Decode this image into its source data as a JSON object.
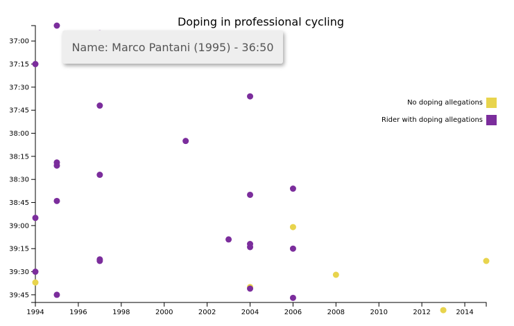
{
  "chart_data": {
    "type": "scatter",
    "title": "Doping in professional cycling",
    "xlabel": "",
    "ylabel": "",
    "xlim": [
      1994,
      2015
    ],
    "ylim": [
      "36:50",
      "39:50"
    ],
    "x_ticks": [
      "1994",
      "1996",
      "1998",
      "2000",
      "2002",
      "2004",
      "2006",
      "2008",
      "2010",
      "2012",
      "2014"
    ],
    "y_ticks": [
      "37:00",
      "37:15",
      "37:30",
      "37:45",
      "38:00",
      "38:15",
      "38:30",
      "38:45",
      "39:00",
      "39:15",
      "39:30",
      "39:45"
    ],
    "y_reversed": true,
    "grid": false,
    "legend_position": "right",
    "series": [
      {
        "name": "No doping allegations",
        "color": "#e8d44d",
        "points": [
          {
            "x": 2006,
            "y": "39:01"
          },
          {
            "x": 2015,
            "y": "39:23"
          },
          {
            "x": 2008,
            "y": "39:32"
          },
          {
            "x": 1994,
            "y": "39:37"
          },
          {
            "x": 2004,
            "y": "39:40"
          },
          {
            "x": 2013,
            "y": "39:55"
          }
        ]
      },
      {
        "name": "Rider with doping allegations",
        "color": "#7b2d9c",
        "points": [
          {
            "x": 1995,
            "y": "36:50"
          },
          {
            "x": 1997,
            "y": "36:55"
          },
          {
            "x": 1994,
            "y": "37:15"
          },
          {
            "x": 2004,
            "y": "37:36"
          },
          {
            "x": 1997,
            "y": "37:42"
          },
          {
            "x": 2001,
            "y": "38:05"
          },
          {
            "x": 1995,
            "y": "38:19"
          },
          {
            "x": 1995,
            "y": "38:21"
          },
          {
            "x": 1997,
            "y": "38:27"
          },
          {
            "x": 2006,
            "y": "38:36"
          },
          {
            "x": 2004,
            "y": "38:40"
          },
          {
            "x": 1995,
            "y": "38:44"
          },
          {
            "x": 1994,
            "y": "38:55"
          },
          {
            "x": 2003,
            "y": "39:09"
          },
          {
            "x": 2004,
            "y": "39:12"
          },
          {
            "x": 2004,
            "y": "39:14"
          },
          {
            "x": 2006,
            "y": "39:15"
          },
          {
            "x": 1997,
            "y": "39:22"
          },
          {
            "x": 1997,
            "y": "39:23"
          },
          {
            "x": 1994,
            "y": "39:30"
          },
          {
            "x": 2004,
            "y": "39:41"
          },
          {
            "x": 1995,
            "y": "39:45"
          },
          {
            "x": 2006,
            "y": "39:47"
          }
        ]
      }
    ],
    "highlighted_point": {
      "x": 1997,
      "y": "36:55",
      "color": "#c9a5d8"
    }
  },
  "tooltip": {
    "text": "Name: Marco Pantani (1995) - 36:50"
  }
}
